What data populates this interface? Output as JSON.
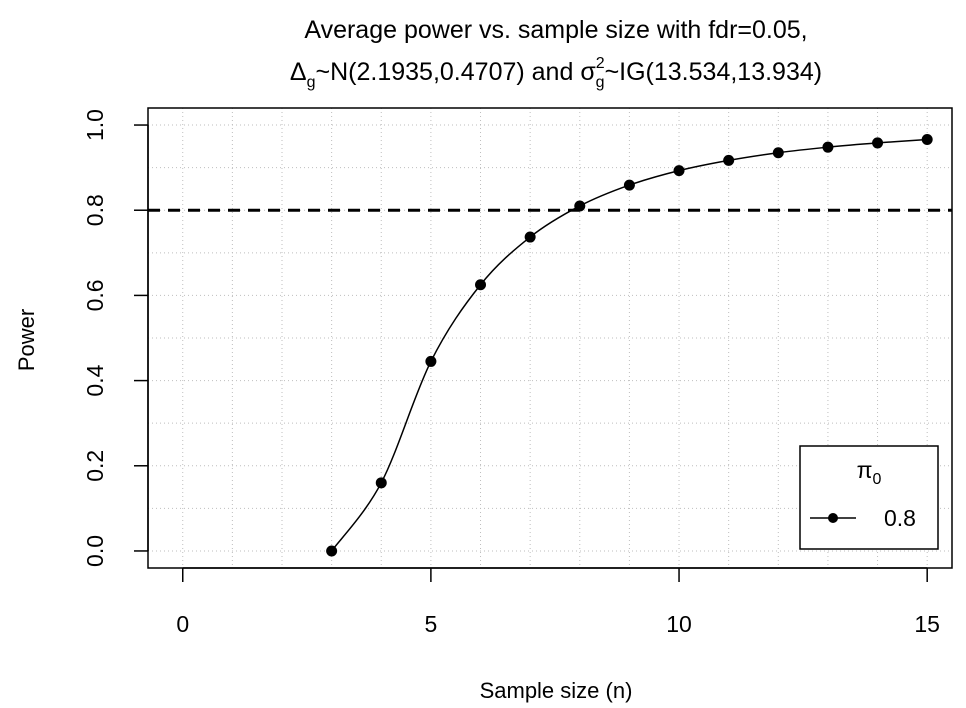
{
  "chart_data": {
    "type": "line",
    "title_line1": "Average power vs. sample size with fdr=0.05,",
    "title_line2": {
      "delta_symbol": "Δ",
      "delta_sub": "g",
      "part1": "~N(2.1935,0.4707) and ",
      "sigma_symbol": "σ",
      "sigma_sup": "2",
      "sigma_sub": "g",
      "part2": "~IG(13.534,13.934)"
    },
    "xlabel": "Sample size (n)",
    "ylabel": "Power",
    "xlim": [
      -0.7,
      15.5
    ],
    "ylim": [
      -0.04,
      1.04
    ],
    "x_ticks": [
      0,
      5,
      10,
      15
    ],
    "x_tick_labels": [
      "0",
      "5",
      "10",
      "15"
    ],
    "y_ticks": [
      0.0,
      0.2,
      0.4,
      0.6,
      0.8,
      1.0
    ],
    "y_tick_labels": [
      "0.0",
      "0.2",
      "0.4",
      "0.6",
      "0.8",
      "1.0"
    ],
    "grid": true,
    "reference_line": {
      "y": 0.8,
      "style": "dashed"
    },
    "series": [
      {
        "name": "0.8",
        "x": [
          3,
          4,
          5,
          6,
          7,
          8,
          9,
          10,
          11,
          12,
          13,
          14,
          15
        ],
        "values": [
          0.0,
          0.16,
          0.445,
          0.625,
          0.737,
          0.81,
          0.859,
          0.893,
          0.917,
          0.935,
          0.948,
          0.958,
          0.966
        ]
      }
    ],
    "legend": {
      "title_symbol": "π",
      "title_sub": "0",
      "placement": "bottom-right",
      "entries": [
        "0.8"
      ]
    },
    "colors": {
      "line": "#000000",
      "grid": "#bebebe"
    }
  }
}
